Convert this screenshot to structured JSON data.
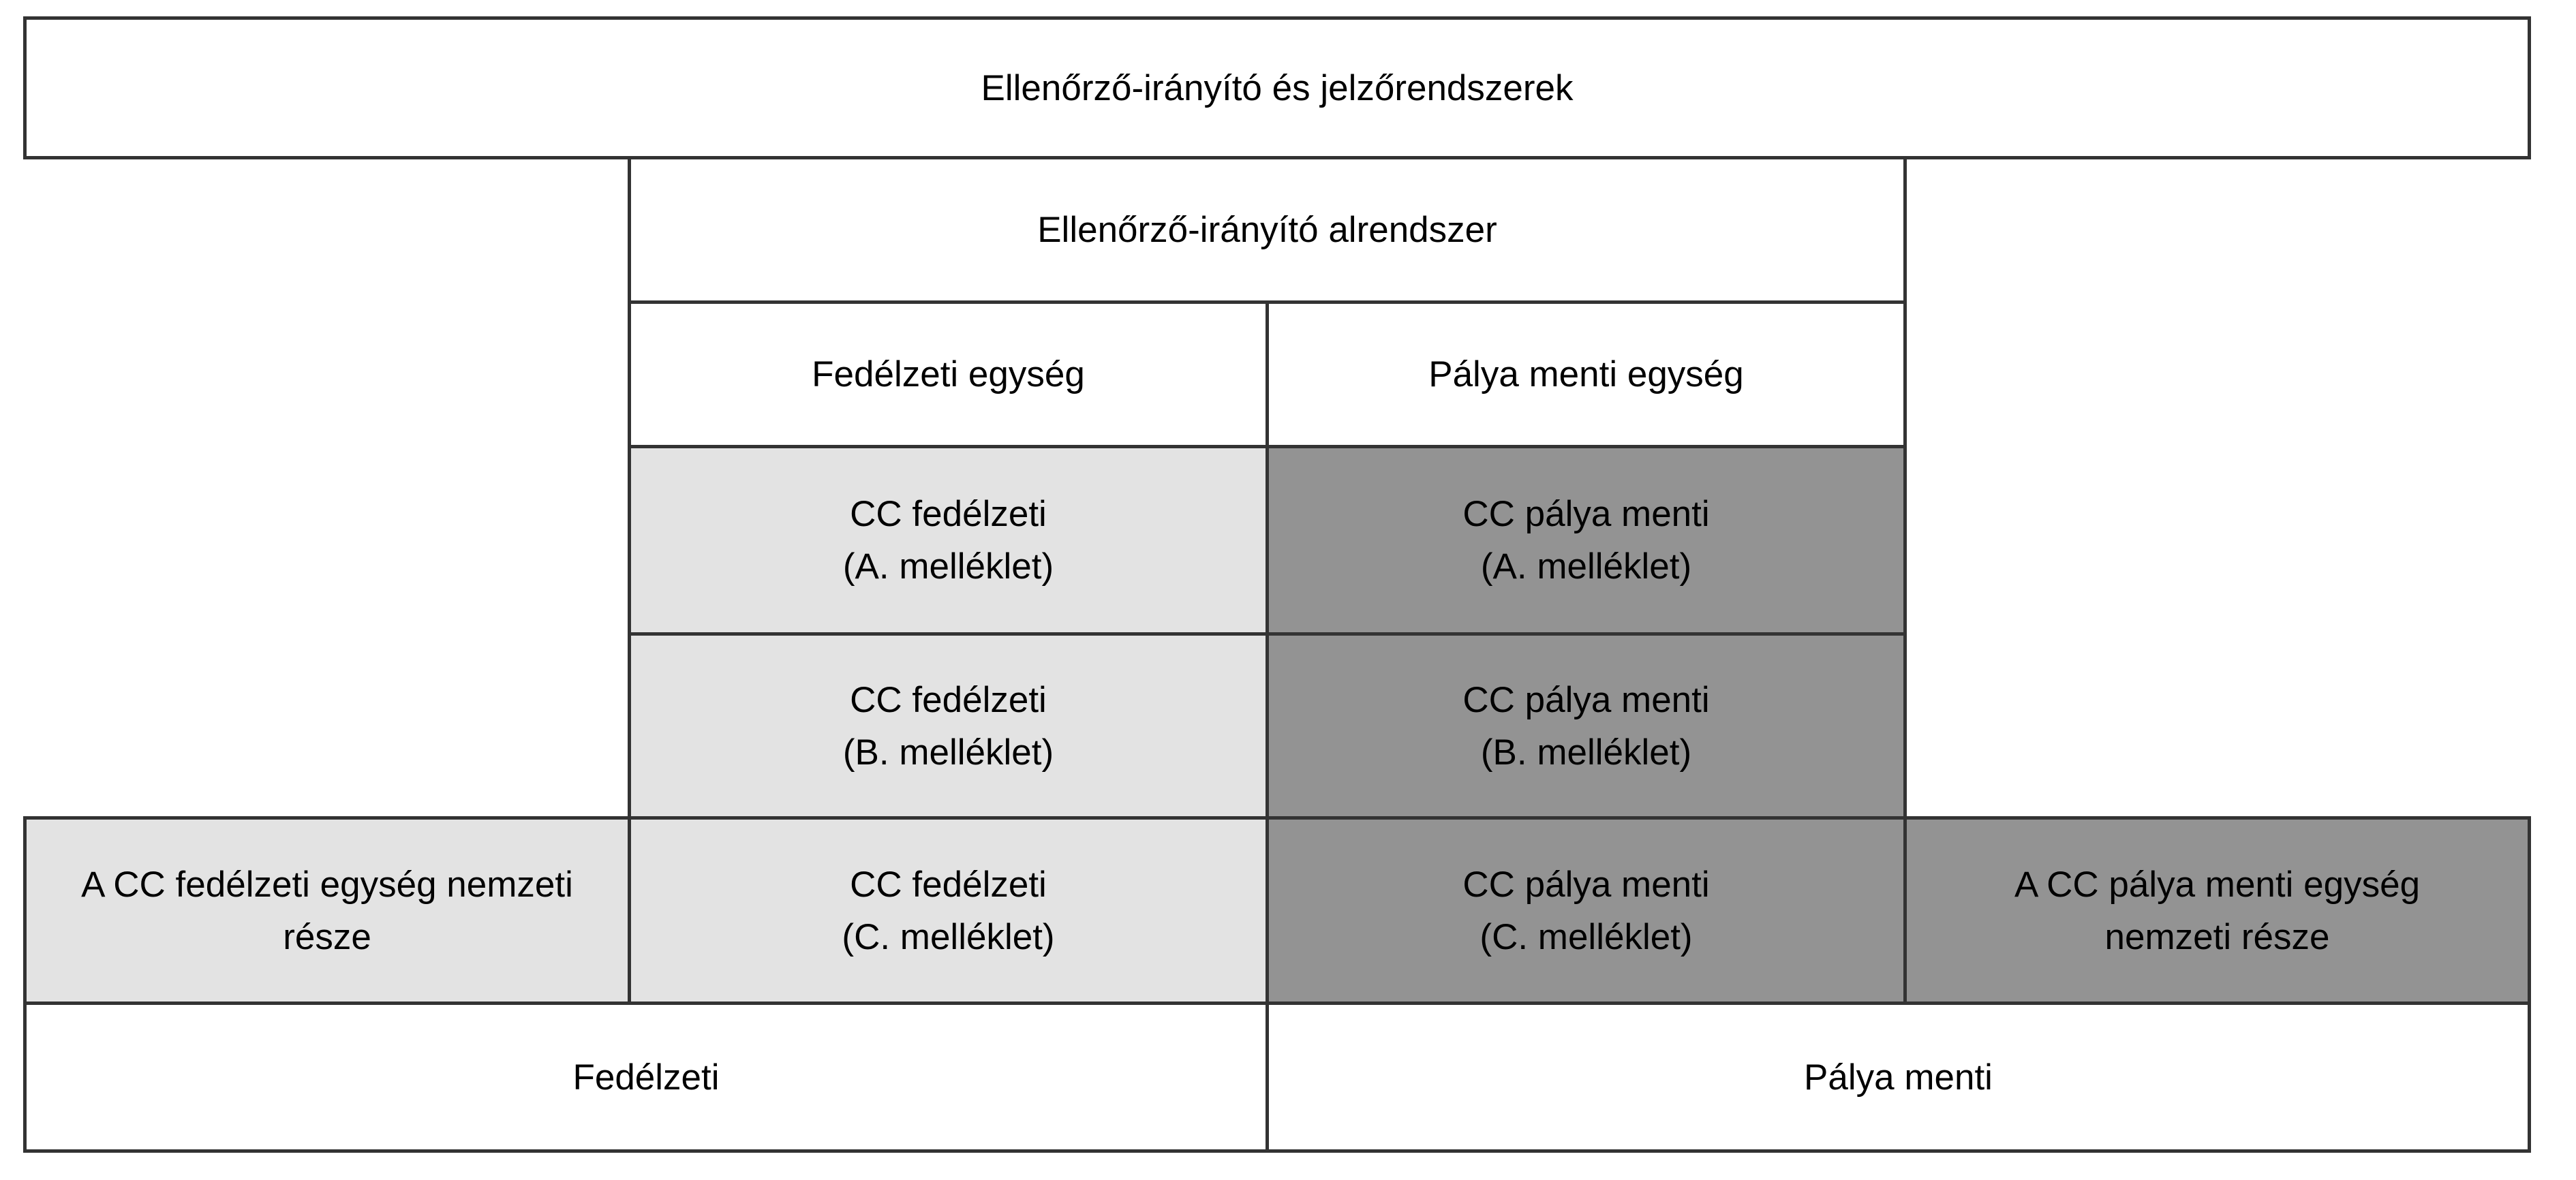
{
  "colors": {
    "border": "#333333",
    "light_fill": "#e3e3e3",
    "dark_fill": "#939393",
    "white_fill": "#ffffff"
  },
  "cells": {
    "top": "Ellenőrző-irányító és jelzőrendszerek",
    "subsystem": "Ellenőrző-irányító alrendszer",
    "onboard_unit": "Fedélzeti egység",
    "trackside_unit": "Pálya menti egység",
    "cc_onboard_a": "CC fedélzeti\n(A. melléklet)",
    "cc_trackside_a": "CC pálya menti\n(A. melléklet)",
    "cc_onboard_b": "CC fedélzeti\n(B. melléklet)",
    "cc_trackside_b": "CC pálya menti\n(B. melléklet)",
    "national_onboard": "A CC fedélzeti egység nemzeti része",
    "cc_onboard_c": "CC fedélzeti\n(C. melléklet)",
    "cc_trackside_c": "CC pálya menti\n(C. melléklet)",
    "national_trackside": "A CC pálya menti egység nemzeti része",
    "onboard": "Fedélzeti",
    "trackside": "Pálya menti"
  }
}
